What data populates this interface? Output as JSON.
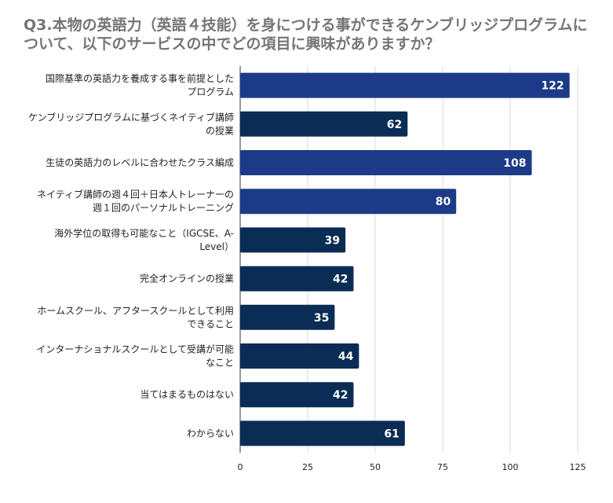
{
  "chart_data": {
    "type": "bar",
    "orientation": "horizontal",
    "title": "Q3.本物の英語力（英語４技能）を身につける事ができるケンブリッジプログラムについて、以下のサービスの中でどの項目に興味がありますか？",
    "xlabel": "",
    "ylabel": "",
    "xlim": [
      0,
      125
    ],
    "ticks": [
      0,
      25,
      50,
      75,
      100,
      125
    ],
    "grid": true,
    "categories": [
      [
        "国際基準の英語力を養成する事を前提とした",
        "プログラム"
      ],
      [
        "ケンブリッジプログラムに基づくネイティブ講師",
        "の授業"
      ],
      [
        "生徒の英語力のレベルに合わせたクラス編成"
      ],
      [
        "ネイティブ講師の週４回＋日本人トレーナーの",
        "週１回のパーソナルトレーニング"
      ],
      [
        "海外学位の取得も可能なこと（IGCSE、A-",
        "Level）"
      ],
      [
        "完全オンラインの授業"
      ],
      [
        "ホームスクール、アフタースクールとして利用",
        "できること"
      ],
      [
        "インターナショナルスクールとして受講が可能",
        "なこと"
      ],
      [
        "当てはまるものはない"
      ],
      [
        "わからない"
      ]
    ],
    "values": [
      122,
      62,
      108,
      80,
      39,
      42,
      35,
      44,
      42,
      61
    ],
    "bar_colors": [
      "#1c3a87",
      "#0b2c55",
      "#1c3a87",
      "#1c3a87",
      "#0b2c55",
      "#0b2c55",
      "#0b2c55",
      "#0b2c55",
      "#0b2c55",
      "#0b2c55"
    ]
  }
}
